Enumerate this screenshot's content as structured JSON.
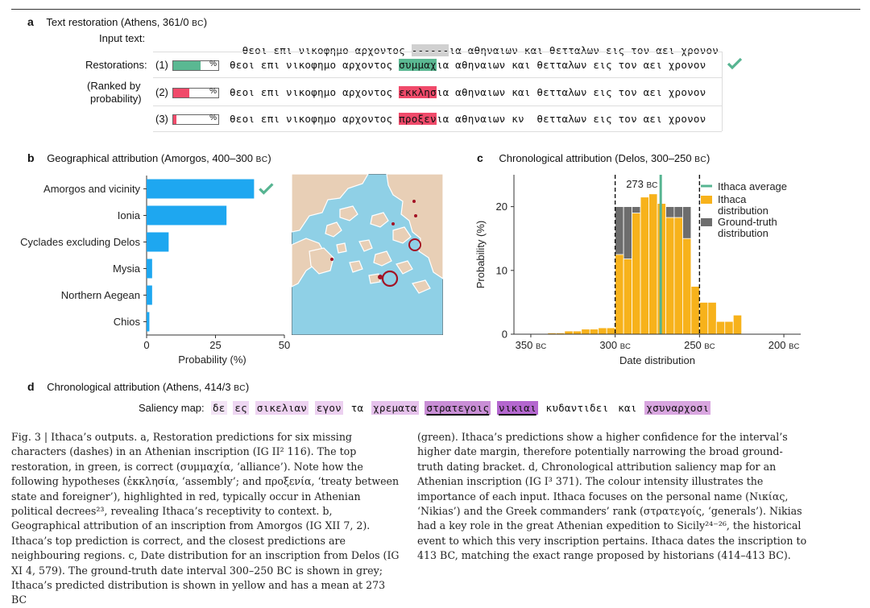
{
  "panel_a": {
    "letter": "a",
    "title": "Text restoration (Athens, 361/0",
    "title_unit": "BC",
    "title_end": ")",
    "input_label": "Input text:",
    "input_prefix": "θεοι επι νικοφημο αρχοντος ",
    "input_missing": "------",
    "input_suffix": "ια αθηναιων και θετταλων εις τον αει χρονον",
    "restorations_label": "Restorations:",
    "ranked_label_1": "(Ranked by",
    "ranked_label_2": "probability)",
    "rows": [
      {
        "rank": "(1)",
        "prefix": "θεοι επι νικοφημο αρχοντος ",
        "restored": "συμμαχ",
        "suffix": "ια αθηναιων και θετταλων εις τον αει χρονον",
        "pct": "%",
        "fill": 0.6,
        "color": "#5ab892",
        "correct": true
      },
      {
        "rank": "(2)",
        "prefix": "θεοι επι νικοφημο αρχοντος ",
        "restored": "εκκλησ",
        "suffix": "ια αθηναιων και θετταλων εις τον αει χρονον",
        "pct": "%",
        "fill": 0.35,
        "color": "#f04a6a",
        "correct": false
      },
      {
        "rank": "(3)",
        "prefix": "θεοι επι νικοφημο αρχοντος ",
        "restored": "προξεν",
        "suffix": "ια αθηναιων κν  θετταλων εις τον αει χρονον",
        "pct": "%",
        "fill": 0.08,
        "color": "#f04a6a",
        "correct": false
      }
    ]
  },
  "panel_b": {
    "letter": "b",
    "title": "Geographical attribution (Amorgos, 400–300",
    "title_unit": "BC",
    "title_end": ")",
    "chart_data": {
      "type": "bar",
      "orientation": "horizontal",
      "categories": [
        "Amorgos and vicinity",
        "Ionia",
        "Cyclades excluding Delos",
        "Mysia",
        "Northern Aegean",
        "Chios"
      ],
      "values": [
        39,
        29,
        8,
        2,
        2,
        1
      ],
      "xlabel": "Probability (%)",
      "xlim": [
        0,
        50
      ],
      "xticks": [
        "0",
        "25",
        "50"
      ],
      "correct_category": "Amorgos and vicinity",
      "bar_color": "#1ea7f0"
    }
  },
  "panel_c": {
    "letter": "c",
    "title": "Chronological attribution (Delos, 300–250",
    "title_unit": "BC",
    "title_end": ")",
    "chart_data": {
      "type": "bar",
      "x_unit": "BC",
      "bins_start": [
        355,
        350,
        345,
        340,
        335,
        330,
        325,
        320,
        315,
        310,
        305,
        300,
        295,
        290,
        285,
        280,
        275,
        270,
        265,
        260,
        255,
        250,
        245,
        240,
        235,
        230,
        225,
        220,
        215,
        210,
        205,
        200
      ],
      "ithaca_distribution": [
        0,
        0.1,
        0.1,
        0.2,
        0.2,
        0.5,
        0.5,
        0.8,
        0.8,
        1.0,
        1.0,
        12.5,
        11.8,
        19.0,
        21.5,
        22.0,
        20.5,
        18.3,
        18.3,
        15.0,
        7.5,
        5.0,
        5.0,
        2.0,
        2.0,
        3.0,
        0.1,
        0,
        0,
        0,
        0,
        0
      ],
      "ground_truth": [
        0,
        0,
        0,
        0,
        0,
        0,
        0,
        0,
        0,
        0,
        0,
        20.0,
        20.0,
        20.0,
        20.0,
        20.0,
        20.0,
        20.0,
        20.0,
        20.0,
        0,
        0,
        0,
        0,
        0,
        0,
        0,
        0,
        0,
        0,
        0,
        0
      ],
      "ithaca_average": 273,
      "ithaca_average_label": "273",
      "ground_truth_interval": [
        300,
        250
      ],
      "ylabel": "Probability (%)",
      "xlabel": "Date distribution",
      "ylim": [
        0,
        25
      ],
      "xlim": [
        360,
        190
      ],
      "yticks": [
        "0",
        "10",
        "20"
      ],
      "xticks": [
        {
          "value": 350,
          "label": "350"
        },
        {
          "value": 300,
          "label": "300"
        },
        {
          "value": 250,
          "label": "250"
        },
        {
          "value": 200,
          "label": "200"
        }
      ],
      "legend": [
        "Ithaca average",
        "Ithaca",
        "distribution",
        "Ground-truth",
        "distribution"
      ],
      "colors": {
        "ithaca": "#f7b21b",
        "ground_truth": "#6d6d6d",
        "average": "#56b491"
      }
    }
  },
  "panel_d": {
    "letter": "d",
    "title": "Chronological attribution (Athens, 414/3",
    "title_unit": "BC",
    "title_end": ")",
    "saliency_label": "Saliency map:",
    "words": [
      {
        "text": "δε",
        "color": "#f3e4f6",
        "underline": false
      },
      {
        "text": "ες",
        "color": "#eed6f2",
        "underline": false
      },
      {
        "text": "σικελιαν",
        "color": "#eed3f1",
        "underline": false
      },
      {
        "text": "εγον",
        "color": "#ecd0f0",
        "underline": false
      },
      {
        "text": "τα",
        "color": "#ffffff",
        "underline": false
      },
      {
        "text": "χρεματα",
        "color": "#e6c2ec",
        "underline": false
      },
      {
        "text": "στρατεγοις",
        "color": "#c98ed6",
        "underline": true
      },
      {
        "text": "νικιαι",
        "color": "#b467cf",
        "underline": true
      },
      {
        "text": "κυδαντιδει",
        "color": "#ffffff",
        "underline": false
      },
      {
        "text": "και",
        "color": "#ffffff",
        "underline": false
      },
      {
        "text": "χσυναρχοσι",
        "color": "#d9a6e0",
        "underline": false
      }
    ]
  },
  "caption": {
    "left": "Fig. 3 | Ithaca’s outputs. a, Restoration predictions for six missing characters (dashes) in an Athenian inscription (IG II² 116). The top restoration, in green, is correct (συμμαχία, ‘alliance’). Note how the following hypotheses (ἐκκλησία, ‘assembly’; and προξενία, ‘treaty between state and foreigner’), highlighted in red, typically occur in Athenian political decrees²³, revealing Ithaca’s receptivity to context. b, Geographical attribution of an inscription from Amorgos (IG XII 7, 2). Ithaca’s top prediction is correct, and the closest predictions are neighbouring regions. c, Date distribution for an inscription from Delos (IG XI 4, 579). The ground-truth date interval 300–250 BC is shown in grey; Ithaca’s predicted distribution is shown in yellow and has a mean at 273 BC",
    "right": "(green). Ithaca’s predictions show a higher confidence for the interval’s higher date margin, therefore potentially narrowing the broad ground-truth dating bracket. d, Chronological attribution saliency map for an Athenian inscription (IG I³ 371). The colour intensity illustrates the importance of each input. Ithaca focuses on the personal name (Νικίας, ‘Nikias’) and the Greek commanders’ rank (στρατεγοίς, ‘generals’). Nikias had a key role in the great Athenian expedition to Sicily²⁴⁻²⁶, the historical event to which this very inscription pertains. Ithaca dates the inscription to 413 BC, matching the exact range proposed by historians (414–413 BC)."
  }
}
